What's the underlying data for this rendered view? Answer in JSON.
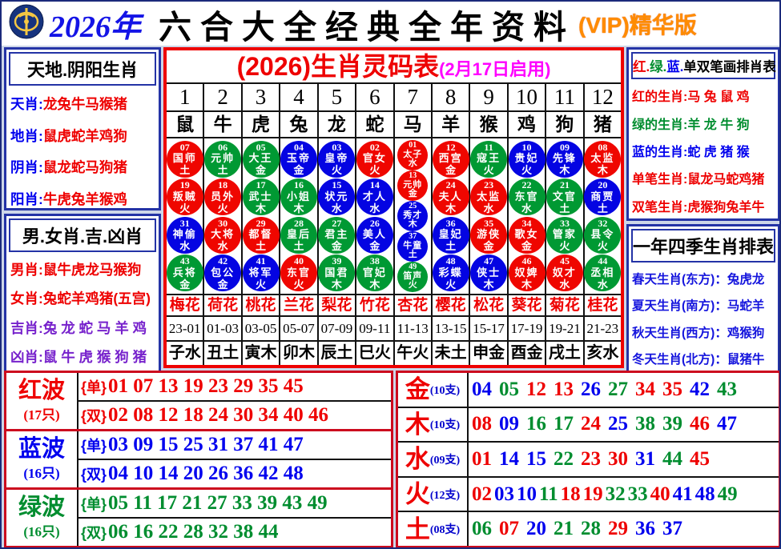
{
  "header": {
    "year": "2026年",
    "title": "六合大全经典全年资料",
    "vip": "(VIP)精华版"
  },
  "left_top": {
    "title": "天地.阴阳生肖",
    "rows": [
      {
        "label": "天肖",
        "value": "龙兔牛马猴猪",
        "label_color": "blue",
        "value_color": "red"
      },
      {
        "label": "地肖",
        "value": "鼠虎蛇羊鸡狗",
        "label_color": "blue",
        "value_color": "red"
      },
      {
        "label": "阴肖",
        "value": "鼠龙蛇马狗猪",
        "label_color": "blue",
        "value_color": "red"
      },
      {
        "label": "阳肖",
        "value": "牛虎兔羊猴鸡",
        "label_color": "blue",
        "value_color": "red"
      }
    ]
  },
  "left_bottom": {
    "title": "男.女肖.吉.凶肖",
    "rows": [
      {
        "label": "男肖",
        "value": "鼠牛虎龙马猴狗",
        "label_color": "red",
        "value_color": "red"
      },
      {
        "label": "女肖",
        "value": "兔蛇羊鸡猪(五宫)",
        "label_color": "red",
        "value_color": "red"
      },
      {
        "label": "吉肖",
        "value": "兔 龙 蛇 马 羊 鸡",
        "label_color": "purple",
        "value_color": "purple"
      },
      {
        "label": "凶肖",
        "value": "鼠 牛 虎 猴 狗 猪",
        "label_color": "purple",
        "value_color": "purple"
      }
    ]
  },
  "main_table": {
    "title": "(2026)生肖灵码表",
    "subtitle": "(2月17日启用)",
    "numbers": [
      "1",
      "2",
      "3",
      "4",
      "5",
      "6",
      "7",
      "8",
      "9",
      "10",
      "11",
      "12"
    ],
    "zodiacs": [
      "鼠",
      "牛",
      "虎",
      "兔",
      "龙",
      "蛇",
      "马",
      "羊",
      "猴",
      "鸡",
      "狗",
      "猪"
    ],
    "ball_columns": [
      [
        [
          "07",
          "国师",
          "土"
        ],
        [
          "19",
          "叛贼",
          "火"
        ],
        [
          "31",
          "神偷",
          "水"
        ],
        [
          "43",
          "兵将",
          "金"
        ]
      ],
      [
        [
          "06",
          "元帅",
          "土"
        ],
        [
          "18",
          "员外",
          "火"
        ],
        [
          "30",
          "大将",
          "水"
        ],
        [
          "42",
          "包公",
          "金"
        ]
      ],
      [
        [
          "05",
          "大王",
          "金"
        ],
        [
          "17",
          "武士",
          "木"
        ],
        [
          "29",
          "都督",
          "土"
        ],
        [
          "41",
          "将军",
          "火"
        ]
      ],
      [
        [
          "04",
          "玉帝",
          "金"
        ],
        [
          "16",
          "小姐",
          "木"
        ],
        [
          "28",
          "皇后",
          "土"
        ],
        [
          "40",
          "东官",
          "火"
        ]
      ],
      [
        [
          "03",
          "皇帝",
          "火"
        ],
        [
          "15",
          "状元",
          "水"
        ],
        [
          "27",
          "君主",
          "金"
        ],
        [
          "39",
          "国君",
          "木"
        ]
      ],
      [
        [
          "02",
          "官女",
          "火"
        ],
        [
          "14",
          "才人",
          "水"
        ],
        [
          "26",
          "美人",
          "金"
        ],
        [
          "38",
          "官妃",
          "木"
        ]
      ],
      [
        [
          "01",
          "太子",
          "水"
        ],
        [
          "13",
          "元帅",
          "金"
        ],
        [
          "25",
          "秀才",
          "木"
        ],
        [
          "37",
          "牛童",
          "土"
        ],
        [
          "49",
          "笛声",
          "火"
        ]
      ],
      [
        [
          "12",
          "西宫",
          "金"
        ],
        [
          "24",
          "夫人",
          "木"
        ],
        [
          "36",
          "皇妃",
          "土"
        ],
        [
          "48",
          "彩蝶",
          "火"
        ]
      ],
      [
        [
          "11",
          "寇王",
          "火"
        ],
        [
          "23",
          "太监",
          "水"
        ],
        [
          "35",
          "游侠",
          "金"
        ],
        [
          "47",
          "侠士",
          "木"
        ]
      ],
      [
        [
          "10",
          "贵妃",
          "火"
        ],
        [
          "22",
          "东官",
          "水"
        ],
        [
          "34",
          "歌女",
          "金"
        ],
        [
          "46",
          "奴婢",
          "木"
        ]
      ],
      [
        [
          "09",
          "先锋",
          "木"
        ],
        [
          "21",
          "文官",
          "土"
        ],
        [
          "33",
          "管家",
          "火"
        ],
        [
          "45",
          "奴才",
          "水"
        ]
      ],
      [
        [
          "08",
          "太监",
          "木"
        ],
        [
          "20",
          "商贾",
          "土"
        ],
        [
          "32",
          "县令",
          "火"
        ],
        [
          "44",
          "丞相",
          "水"
        ]
      ]
    ],
    "flowers": [
      "梅花",
      "荷花",
      "桃花",
      "兰花",
      "梨花",
      "竹花",
      "杏花",
      "樱花",
      "松花",
      "葵花",
      "菊花",
      "桂花"
    ],
    "hours": [
      "23-01",
      "01-03",
      "03-05",
      "05-07",
      "07-09",
      "09-11",
      "11-13",
      "13-15",
      "15-17",
      "17-19",
      "19-21",
      "21-23"
    ],
    "branches": [
      "子水",
      "丑土",
      "寅木",
      "卯木",
      "辰土",
      "巳火",
      "午火",
      "未土",
      "申金",
      "酉金",
      "戌土",
      "亥水"
    ]
  },
  "right_top": {
    "title_parts": [
      {
        "text": "红.",
        "color": "red"
      },
      {
        "text": "绿.",
        "color": "green"
      },
      {
        "text": "蓝.",
        "color": "blue"
      },
      {
        "text": "单双笔画排肖表",
        "color": "black"
      }
    ],
    "rows": [
      {
        "label": "红的生肖",
        "value": "马 兔 鼠 鸡",
        "color": "red"
      },
      {
        "label": "绿的生肖",
        "value": "羊 龙 牛 狗",
        "color": "green"
      },
      {
        "label": "蓝的生肖",
        "value": "蛇 虎 猪 猴",
        "color": "blue"
      },
      {
        "label": "单笔生肖",
        "value": "鼠龙马蛇鸡猪",
        "color": "red"
      },
      {
        "label": "双笔生肖",
        "value": "虎猴狗兔羊牛",
        "color": "red"
      }
    ]
  },
  "right_bottom": {
    "title": "一年四季生肖排表",
    "rows": [
      "春天生肖(东方)：兔虎龙",
      "夏天生肖(南方)：马蛇羊",
      "秋天生肖(西方)：鸡猴狗",
      "冬天生肖(北方)：鼠猪牛"
    ]
  },
  "waves": [
    {
      "name": "红波",
      "count": "(17只)",
      "color": "red",
      "odd_label": "{单}",
      "odd": "01 07 13 19 23 29 35 45",
      "even_label": "{双}",
      "even": "02 08 12 18 24 30 34 40 46"
    },
    {
      "name": "蓝波",
      "count": "(16只)",
      "color": "blue",
      "odd_label": "{单}",
      "odd": "03 09 15 25 31 37 41 47",
      "even_label": "{双}",
      "even": "04 10 14 20 26 36 42 48"
    },
    {
      "name": "绿波",
      "count": "(16只)",
      "color": "green",
      "odd_label": "{单}",
      "odd": "05 11 17 21 27 33 39 43 49",
      "even_label": "{双}",
      "even": "06 16 22 28 32 38 44"
    }
  ],
  "elements": [
    {
      "name": "金",
      "count": "(10支)",
      "numbers": [
        "04",
        "05",
        "12",
        "13",
        "26",
        "27",
        "34",
        "35",
        "42",
        "43"
      ]
    },
    {
      "name": "木",
      "count": "(10支)",
      "numbers": [
        "08",
        "09",
        "16",
        "17",
        "24",
        "25",
        "38",
        "39",
        "46",
        "47"
      ]
    },
    {
      "name": "水",
      "count": "(09支)",
      "numbers": [
        "01",
        "14",
        "15",
        "22",
        "23",
        "30",
        "31",
        "44",
        "45"
      ]
    },
    {
      "name": "火",
      "count": "(12支)",
      "numbers": [
        "02",
        "03",
        "10",
        "11",
        "18",
        "19",
        "32",
        "33",
        "40",
        "41",
        "48",
        "49"
      ]
    },
    {
      "name": "土",
      "count": "(08支)",
      "numbers": [
        "06",
        "07",
        "20",
        "21",
        "28",
        "29",
        "36",
        "37"
      ]
    }
  ],
  "ball_colors": {
    "red": [
      1,
      2,
      7,
      8,
      12,
      13,
      18,
      19,
      23,
      24,
      29,
      30,
      34,
      35,
      40,
      45,
      46
    ],
    "blue": [
      3,
      4,
      9,
      10,
      14,
      15,
      20,
      25,
      26,
      31,
      36,
      37,
      41,
      42,
      47,
      48
    ],
    "green": [
      5,
      6,
      11,
      16,
      17,
      21,
      22,
      27,
      28,
      32,
      33,
      38,
      39,
      43,
      44,
      49
    ]
  },
  "colors": {
    "red": "#ee0000",
    "green": "#008d2f",
    "blue": "#0000ee",
    "purple": "#7722cc",
    "magenta": "#ff00ff",
    "orange": "#ff8c00",
    "navy_border": "#2433a6",
    "red_border": "#ee0000",
    "crimson_border": "#cc0a1e"
  }
}
